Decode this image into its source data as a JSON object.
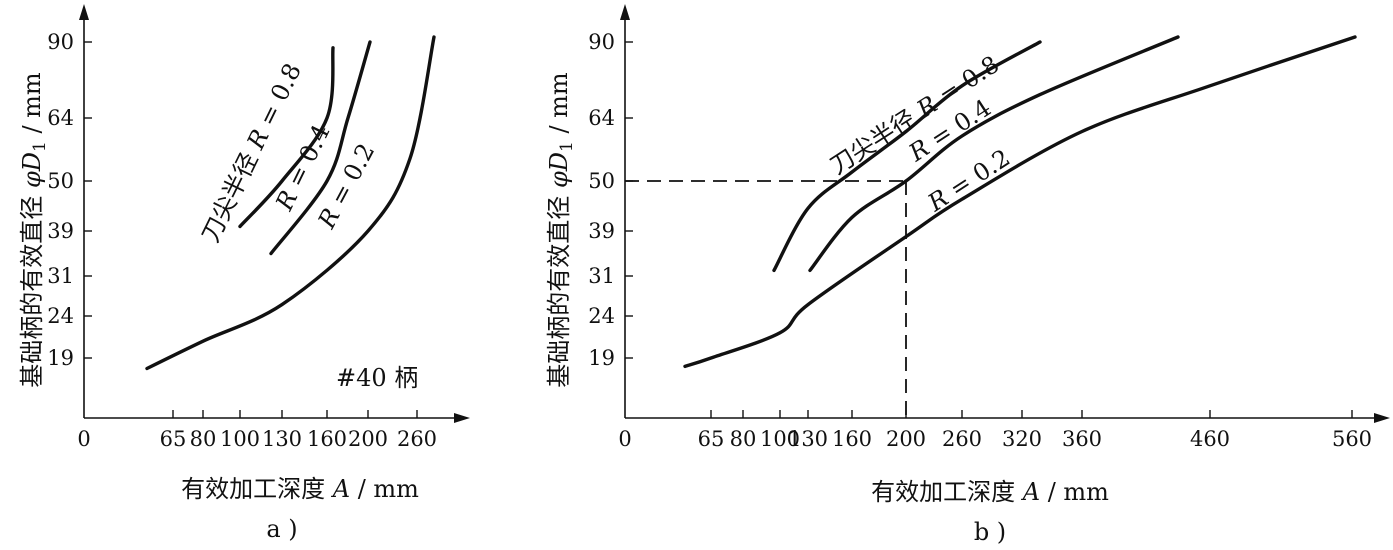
{
  "chart_data": [
    {
      "type": "line",
      "panel": "a)",
      "caption": "a )",
      "xlabel": "有效加工深度 A / mm",
      "ylabel": "基础柄的有效直径 φD₁ / mm",
      "x_ticks": [
        "0",
        "65",
        "80",
        "100",
        "130",
        "160",
        "200",
        "260"
      ],
      "y_ticks": [
        "19",
        "24",
        "31",
        "39",
        "50",
        "64",
        "90"
      ],
      "note": "#40 柄",
      "series": [
        {
          "name": "R = 0.8",
          "label": "刀尖半径 R = 0.8",
          "x": [
            "100",
            "130",
            "160",
            "175"
          ],
          "y": [
            40,
            50,
            64,
            88
          ]
        },
        {
          "name": "R = 0.4",
          "label": "R = 0.4",
          "x": [
            "120",
            "160",
            "190",
            "210"
          ],
          "y": [
            35,
            50,
            64,
            90
          ]
        },
        {
          "name": "R = 0.2",
          "label": "R = 0.2",
          "x": [
            "45",
            "80",
            "130",
            "200",
            "240",
            "275"
          ],
          "y": [
            17.5,
            21,
            26,
            39,
            55,
            92
          ]
        }
      ]
    },
    {
      "type": "line",
      "panel": "b)",
      "caption": "b )",
      "xlabel": "有效加工深度 A / mm",
      "ylabel": "基础柄的有效直径 φD₁ / mm",
      "x_ticks": [
        "0",
        "65",
        "80",
        "100",
        "130",
        "160",
        "200",
        "260",
        "320",
        "360",
        "460",
        "560"
      ],
      "y_ticks": [
        "19",
        "24",
        "31",
        "39",
        "50",
        "64",
        "90"
      ],
      "series": [
        {
          "name": "R = 0.8",
          "label": "刀尖半径 R = 0.8",
          "x": [
            "95",
            "130",
            "160",
            "200",
            "260",
            "330"
          ],
          "y": [
            32,
            44,
            52,
            61,
            75,
            90
          ]
        },
        {
          "name": "R = 0.4",
          "label": "R = 0.4",
          "x": [
            "120",
            "160",
            "200",
            "260",
            "330",
            "440"
          ],
          "y": [
            32,
            42,
            50,
            60,
            72,
            92
          ]
        },
        {
          "name": "R = 0.2",
          "label": "R = 0.2",
          "x": [
            "40",
            "65",
            "100",
            "130",
            "200",
            "260",
            "360",
            "460",
            "570"
          ],
          "y": [
            17.8,
            19,
            22,
            26,
            38,
            46,
            61,
            75,
            92
          ]
        }
      ],
      "guide": {
        "x": "200",
        "y": 50,
        "style": "dashed"
      }
    }
  ]
}
